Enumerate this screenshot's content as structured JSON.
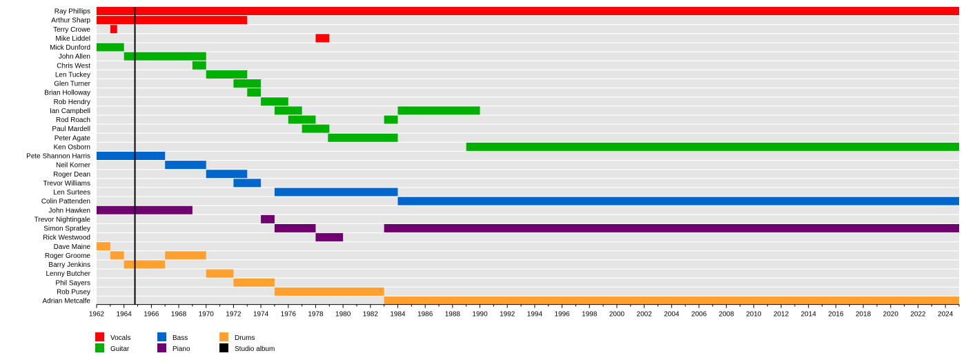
{
  "chart_data": {
    "type": "timeline",
    "xlim": [
      1962,
      2025
    ],
    "x_ticks": [
      1962,
      1964,
      1966,
      1968,
      1970,
      1972,
      1974,
      1976,
      1978,
      1980,
      1982,
      1984,
      1986,
      1988,
      1990,
      1992,
      1994,
      1996,
      1998,
      2000,
      2002,
      2004,
      2006,
      2008,
      2010,
      2012,
      2014,
      2016,
      2018,
      2020,
      2022,
      2024
    ],
    "roles": [
      {
        "name": "Vocals",
        "color": "#ff0000"
      },
      {
        "name": "Guitar",
        "color": "#00b000"
      },
      {
        "name": "Bass",
        "color": "#0066cc"
      },
      {
        "name": "Drums",
        "color": "#ffa030"
      },
      {
        "name": "Piano",
        "color": "#700070"
      },
      {
        "name": "Studio album",
        "color": "#000000"
      }
    ],
    "members": [
      {
        "name": "Ray Phillips",
        "role": "Vocals",
        "periods": [
          [
            1962,
            2025
          ]
        ]
      },
      {
        "name": "Arthur Sharp",
        "role": "Vocals",
        "periods": [
          [
            1962,
            1973
          ]
        ]
      },
      {
        "name": "Terry Crowe",
        "role": "Vocals",
        "periods": [
          [
            1963,
            1963.5
          ]
        ]
      },
      {
        "name": "Mike Liddel",
        "role": "Vocals",
        "periods": [
          [
            1978,
            1979
          ]
        ]
      },
      {
        "name": "Mick Dunford",
        "role": "Guitar",
        "periods": [
          [
            1962,
            1964
          ]
        ]
      },
      {
        "name": "John Allen",
        "role": "Guitar",
        "periods": [
          [
            1964,
            1970
          ]
        ]
      },
      {
        "name": "Chris West",
        "role": "Guitar",
        "periods": [
          [
            1969,
            1970
          ]
        ]
      },
      {
        "name": "Len Tuckey",
        "role": "Guitar",
        "periods": [
          [
            1970,
            1973
          ]
        ]
      },
      {
        "name": "Glen Turner",
        "role": "Guitar",
        "periods": [
          [
            1972,
            1974
          ]
        ]
      },
      {
        "name": "Brian Holloway",
        "role": "Guitar",
        "periods": [
          [
            1973,
            1974
          ]
        ]
      },
      {
        "name": "Rob Hendry",
        "role": "Guitar",
        "periods": [
          [
            1974,
            1976
          ]
        ]
      },
      {
        "name": "Ian Campbell",
        "role": "Guitar",
        "periods": [
          [
            1975,
            1977
          ],
          [
            1984,
            1990
          ]
        ]
      },
      {
        "name": "Rod Roach",
        "role": "Guitar",
        "periods": [
          [
            1976,
            1978
          ],
          [
            1983,
            1984
          ]
        ]
      },
      {
        "name": "Paul Mardell",
        "role": "Guitar",
        "periods": [
          [
            1977,
            1979
          ]
        ]
      },
      {
        "name": "Peter Agate",
        "role": "Guitar",
        "periods": [
          [
            1978.9,
            1984
          ]
        ]
      },
      {
        "name": "Ken Osborn",
        "role": "Guitar",
        "periods": [
          [
            1989,
            2025
          ]
        ]
      },
      {
        "name": "Pete Shannon Harris",
        "role": "Bass",
        "periods": [
          [
            1962,
            1967
          ]
        ]
      },
      {
        "name": "Neil Korner",
        "role": "Bass",
        "periods": [
          [
            1967,
            1970
          ]
        ]
      },
      {
        "name": "Roger Dean",
        "role": "Bass",
        "periods": [
          [
            1970,
            1973
          ]
        ]
      },
      {
        "name": "Trevor Williams",
        "role": "Bass",
        "periods": [
          [
            1972,
            1974
          ]
        ]
      },
      {
        "name": "Len Surtees",
        "role": "Bass",
        "periods": [
          [
            1975,
            1984
          ]
        ]
      },
      {
        "name": "Colin Pattenden",
        "role": "Bass",
        "periods": [
          [
            1984,
            2025
          ]
        ]
      },
      {
        "name": "John Hawken",
        "role": "Piano",
        "periods": [
          [
            1962,
            1969
          ]
        ]
      },
      {
        "name": "Trevor Nightingale",
        "role": "Piano",
        "periods": [
          [
            1974,
            1975
          ]
        ]
      },
      {
        "name": "Simon Spratley",
        "role": "Piano",
        "periods": [
          [
            1975,
            1978
          ],
          [
            1983,
            2025
          ]
        ]
      },
      {
        "name": "Rick Westwood",
        "role": "Piano",
        "periods": [
          [
            1978,
            1980
          ]
        ]
      },
      {
        "name": "Dave Maine",
        "role": "Drums",
        "periods": [
          [
            1962,
            1963
          ]
        ]
      },
      {
        "name": "Roger Groome",
        "role": "Drums",
        "periods": [
          [
            1963,
            1964
          ],
          [
            1967,
            1970
          ]
        ]
      },
      {
        "name": "Barry Jenkins",
        "role": "Drums",
        "periods": [
          [
            1964,
            1967
          ]
        ]
      },
      {
        "name": "Lenny Butcher",
        "role": "Drums",
        "periods": [
          [
            1970,
            1972
          ]
        ]
      },
      {
        "name": "Phil Sayers",
        "role": "Drums",
        "periods": [
          [
            1972,
            1975
          ]
        ]
      },
      {
        "name": "Rob Pusey",
        "role": "Drums",
        "periods": [
          [
            1975,
            1983
          ]
        ]
      },
      {
        "name": "Adrian Metcalfe",
        "role": "Drums",
        "periods": [
          [
            1983,
            2025
          ]
        ]
      }
    ],
    "studio_albums": [
      1964.8
    ],
    "legend_placement": "bottom-left"
  }
}
